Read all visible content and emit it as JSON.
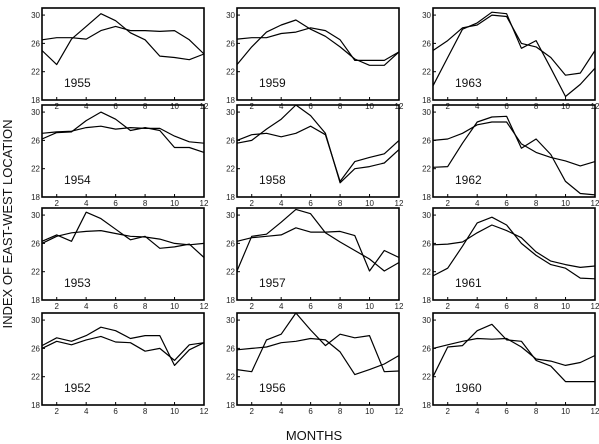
{
  "chart_data": {
    "type": "line",
    "xlabel": "MONTHS",
    "ylabel": "INDEX OF EAST-WEST LOCATION",
    "x_ticks": [
      2,
      4,
      6,
      8,
      10,
      12
    ],
    "y_ticks": [
      18,
      22,
      26,
      30
    ],
    "xlim": [
      1,
      12
    ],
    "ylim": [
      18,
      31
    ],
    "panels": [
      {
        "year": "1955",
        "series": [
          {
            "values": [
              26.5,
              26.8,
              26.8,
              26.6,
              27.8,
              28.4,
              27.8,
              27.8,
              27.7,
              27.8,
              26.5,
              24.5
            ]
          },
          {
            "values": [
              25.0,
              23.0,
              26.6,
              28.4,
              30.2,
              29.2,
              27.5,
              26.5,
              24.2,
              24.0,
              23.7,
              24.5
            ]
          }
        ]
      },
      {
        "year": "1959",
        "series": [
          {
            "values": [
              26.6,
              26.8,
              26.8,
              27.4,
              27.6,
              28.2,
              27.8,
              26.5,
              23.6,
              23.6,
              23.6,
              24.8
            ]
          },
          {
            "values": [
              23.0,
              25.5,
              27.6,
              28.6,
              29.3,
              28.0,
              27.0,
              25.5,
              23.8,
              22.9,
              22.9,
              24.8
            ]
          }
        ]
      },
      {
        "year": "1963",
        "series": [
          {
            "values": [
              25.0,
              26.4,
              28.2,
              28.6,
              30.0,
              29.8,
              26.0,
              25.5,
              24.0,
              21.5,
              21.8,
              25.0
            ]
          },
          {
            "values": [
              20.0,
              24.0,
              28.0,
              28.9,
              30.4,
              30.2,
              25.3,
              26.4,
              22.5,
              18.5,
              20.2,
              22.5
            ]
          }
        ]
      },
      {
        "year": "1954",
        "series": [
          {
            "values": [
              27.0,
              27.2,
              27.3,
              27.8,
              28.0,
              27.6,
              27.8,
              27.7,
              27.7,
              26.6,
              25.8,
              25.6
            ]
          },
          {
            "values": [
              26.2,
              27.1,
              27.2,
              28.8,
              30.0,
              29.0,
              27.4,
              27.8,
              27.4,
              25.0,
              25.0,
              24.3
            ]
          }
        ]
      },
      {
        "year": "1958",
        "series": [
          {
            "values": [
              26.0,
              26.8,
              27.0,
              26.5,
              27.0,
              28.0,
              26.8,
              20.2,
              23.0,
              23.6,
              24.1,
              26.0
            ]
          },
          {
            "values": [
              25.6,
              26.0,
              27.6,
              29.0,
              31.0,
              29.5,
              27.0,
              20.0,
              22.0,
              22.3,
              22.8,
              24.7
            ]
          }
        ]
      },
      {
        "year": "1962",
        "series": [
          {
            "values": [
              26.0,
              26.2,
              27.0,
              28.2,
              28.6,
              28.6,
              25.5,
              24.3,
              23.6,
              23.1,
              22.4,
              23.0
            ]
          },
          {
            "values": [
              22.2,
              22.3,
              25.6,
              28.6,
              29.3,
              29.4,
              24.9,
              26.2,
              24.0,
              20.2,
              18.5,
              18.3
            ]
          }
        ]
      },
      {
        "year": "1953",
        "series": [
          {
            "values": [
              26.0,
              27.0,
              27.5,
              27.7,
              27.8,
              27.4,
              27.0,
              26.9,
              26.6,
              26.0,
              25.8,
              26.0
            ]
          },
          {
            "values": [
              26.3,
              27.2,
              26.3,
              30.4,
              29.5,
              28.0,
              26.5,
              27.0,
              25.3,
              25.5,
              25.9,
              24.0
            ]
          }
        ]
      },
      {
        "year": "1957",
        "series": [
          {
            "values": [
              26.3,
              26.8,
              27.0,
              27.2,
              28.2,
              27.6,
              27.6,
              27.7,
              27.1,
              22.1,
              25.0,
              24.0
            ]
          },
          {
            "values": [
              22.1,
              27.0,
              27.3,
              29.0,
              30.8,
              30.2,
              27.5,
              26.2,
              25.0,
              23.8,
              22.1,
              23.3
            ]
          }
        ]
      },
      {
        "year": "1961",
        "series": [
          {
            "values": [
              25.8,
              25.9,
              26.2,
              27.5,
              28.6,
              27.8,
              26.8,
              24.8,
              23.5,
              23.0,
              22.6,
              22.8
            ]
          },
          {
            "values": [
              21.4,
              22.5,
              25.6,
              28.9,
              29.7,
              28.6,
              26.0,
              24.3,
              23.0,
              22.5,
              21.1,
              21.0
            ]
          }
        ]
      },
      {
        "year": "1952",
        "series": [
          {
            "values": [
              26.0,
              27.0,
              26.5,
              27.2,
              27.7,
              26.9,
              26.8,
              25.6,
              26.0,
              24.3,
              26.5,
              26.8
            ]
          },
          {
            "values": [
              26.4,
              27.5,
              27.0,
              27.8,
              29.0,
              28.5,
              27.4,
              27.8,
              27.8,
              23.6,
              25.8,
              26.8
            ]
          }
        ]
      },
      {
        "year": "1956",
        "series": [
          {
            "values": [
              25.8,
              26.0,
              26.2,
              26.8,
              27.0,
              27.4,
              27.2,
              25.5,
              22.3,
              23.0,
              23.8,
              25.0
            ]
          },
          {
            "values": [
              23.0,
              22.7,
              27.2,
              28.0,
              31.0,
              28.6,
              26.4,
              28.0,
              27.5,
              27.8,
              22.7,
              22.8
            ]
          }
        ]
      },
      {
        "year": "1960",
        "series": [
          {
            "values": [
              26.0,
              26.5,
              27.0,
              27.4,
              27.3,
              27.4,
              26.2,
              24.5,
              24.2,
              23.6,
              24.0,
              25.0
            ]
          },
          {
            "values": [
              22.0,
              26.2,
              26.4,
              28.5,
              29.4,
              27.2,
              27.0,
              24.3,
              23.5,
              21.3,
              21.3,
              21.3
            ]
          }
        ]
      }
    ]
  }
}
